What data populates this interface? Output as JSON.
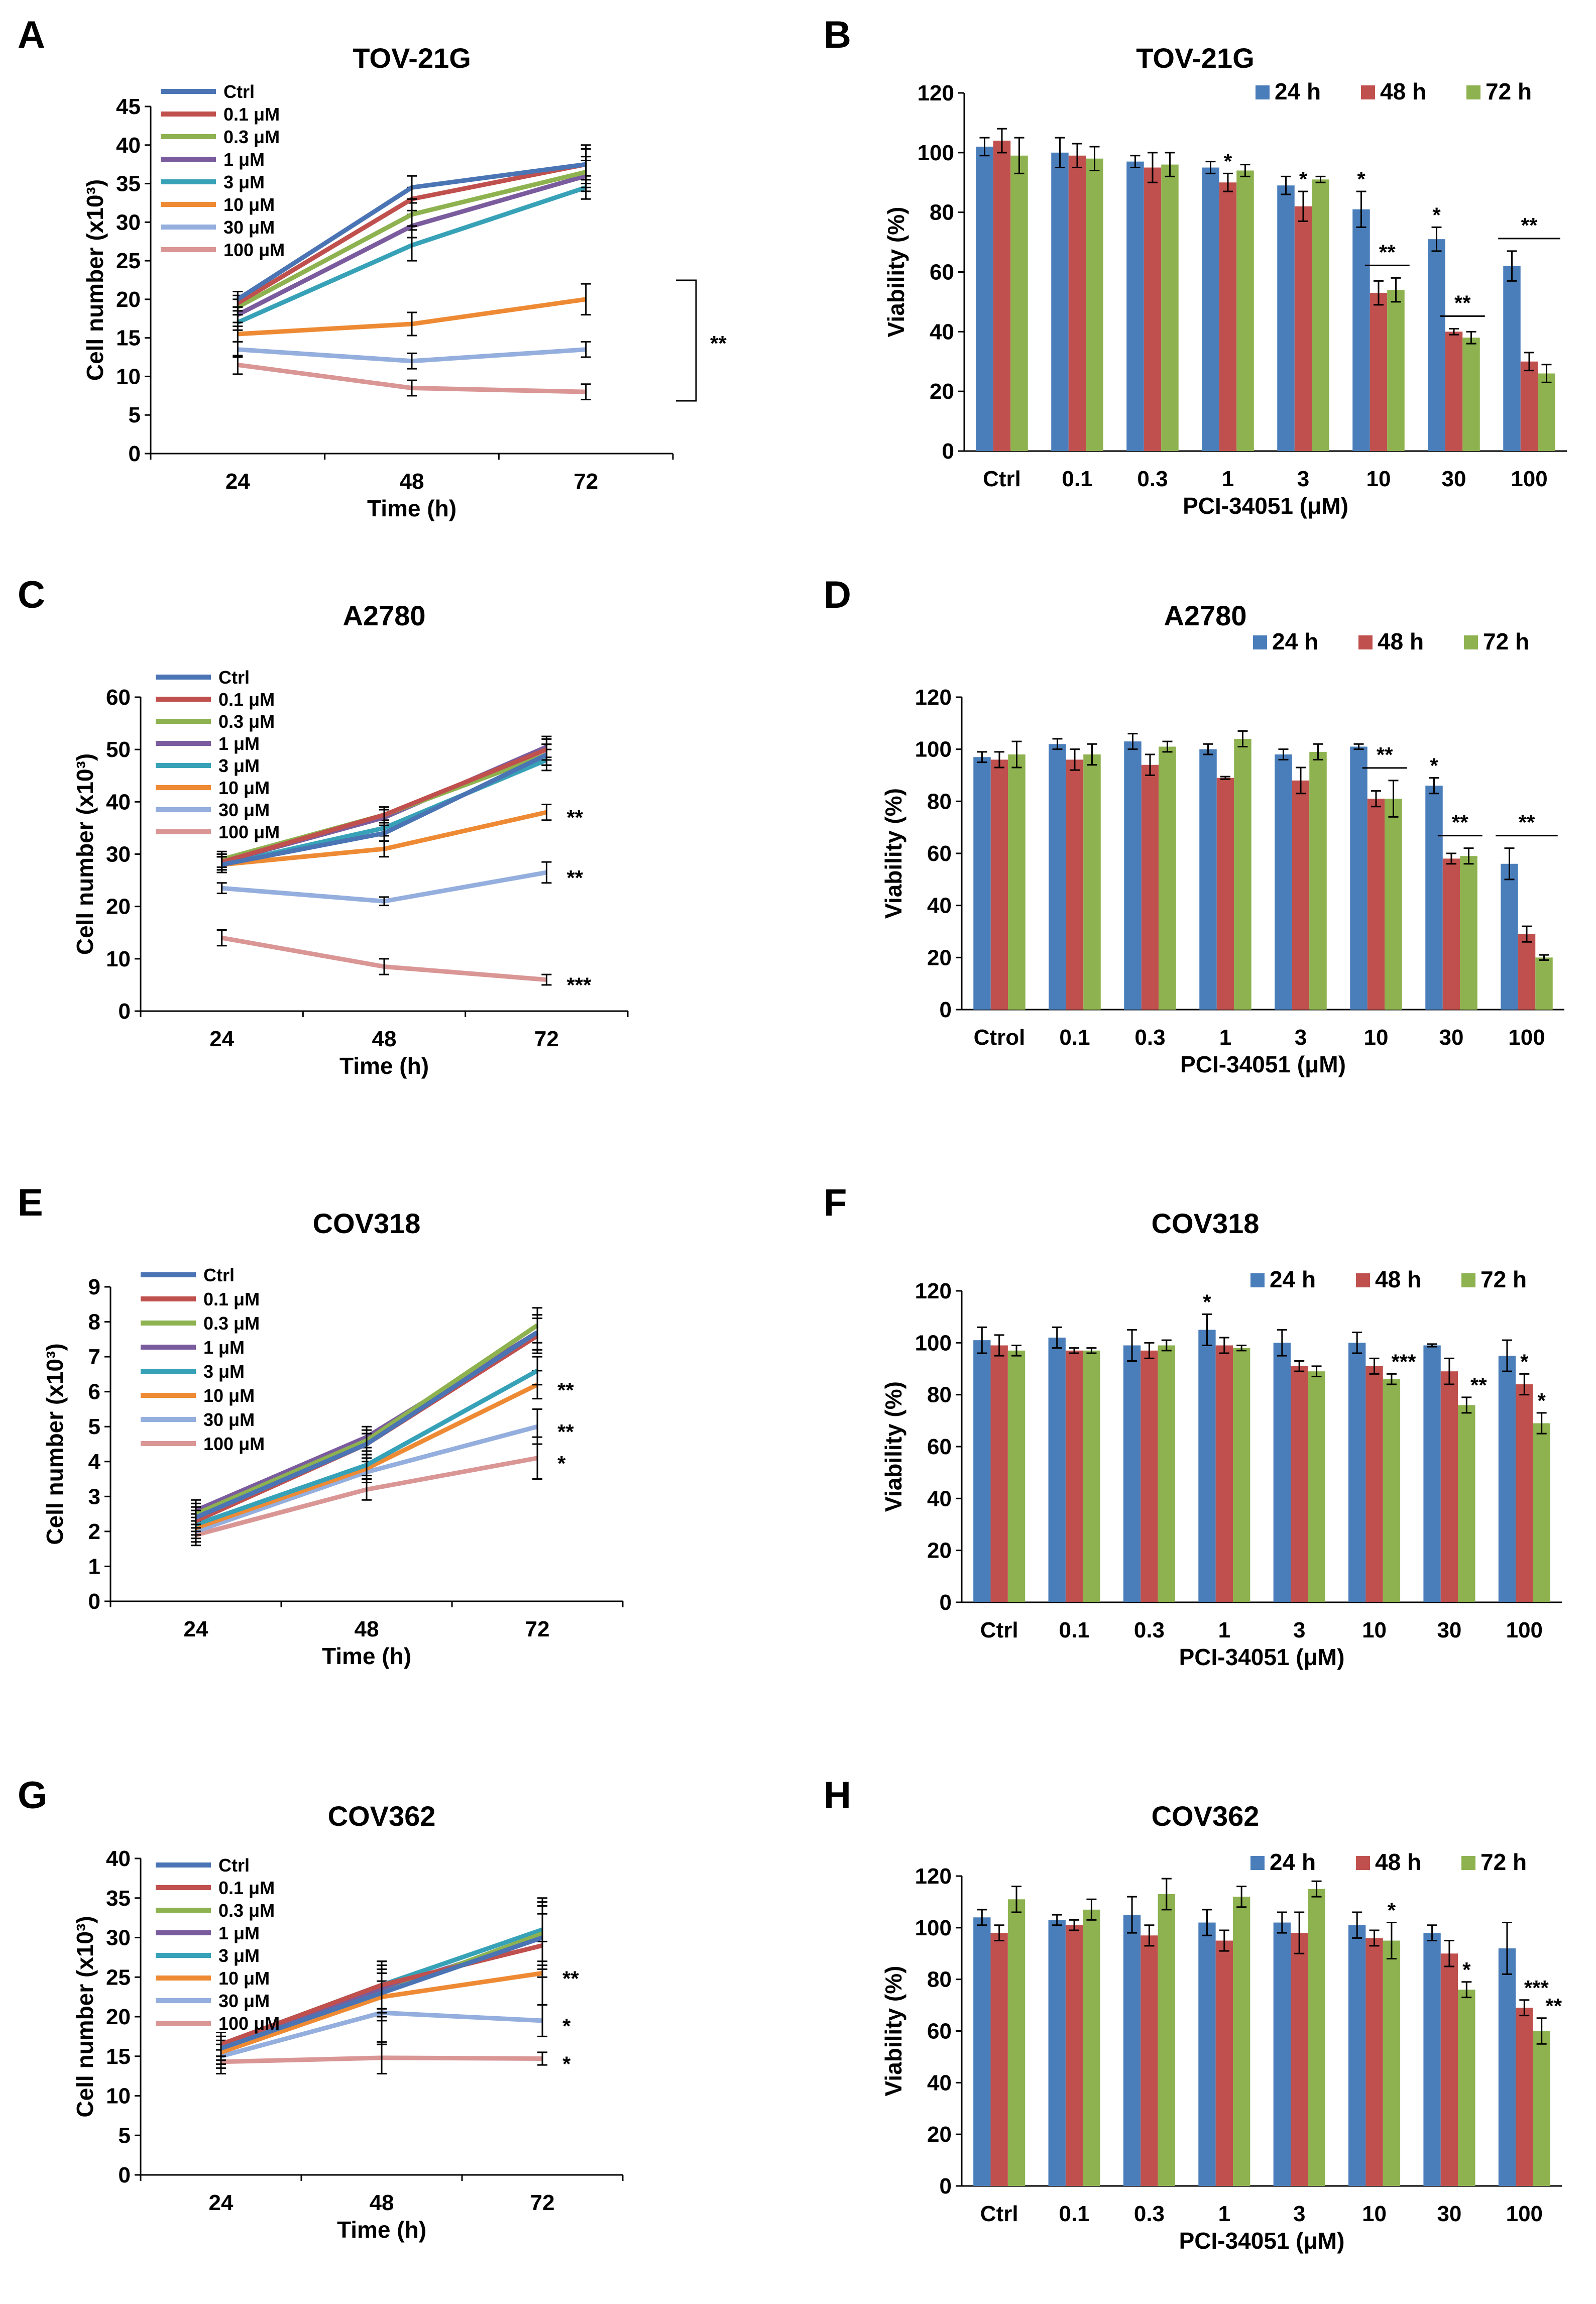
{
  "chart_data": [
    {
      "panel": "A",
      "type": "line",
      "title": "TOV-21G",
      "xlabel": "Time (h)",
      "ylabel": "Cell number (x10³)",
      "x": [
        24,
        48,
        72
      ],
      "ylim": [
        0,
        45
      ],
      "yticks": [
        0,
        5,
        10,
        15,
        20,
        25,
        30,
        35,
        40,
        45
      ],
      "series": [
        {
          "name": "Ctrl",
          "color": "#4a74b4",
          "values": [
            20,
            34.5,
            37.5
          ],
          "errors": [
            1,
            1.5,
            2.5
          ]
        },
        {
          "name": "0.1 μM",
          "color": "#c0504d",
          "values": [
            19.5,
            33,
            37.5
          ],
          "errors": [
            1,
            1.5,
            2
          ]
        },
        {
          "name": "0.3 μM",
          "color": "#8db24f",
          "values": [
            19,
            31,
            36.5
          ],
          "errors": [
            1,
            1.5,
            2
          ]
        },
        {
          "name": "1 μM",
          "color": "#7a5c9e",
          "values": [
            18,
            29.5,
            36
          ],
          "errors": [
            1,
            1.5,
            2
          ]
        },
        {
          "name": "3 μM",
          "color": "#37a2b7",
          "values": [
            17,
            27,
            34.5
          ],
          "errors": [
            1,
            2,
            1.5
          ]
        },
        {
          "name": "10 μM",
          "color": "#ee8a34",
          "values": [
            15.5,
            16.8,
            20
          ],
          "errors": [
            1,
            1.5,
            2
          ]
        },
        {
          "name": "30 μM",
          "color": "#94aede",
          "values": [
            13.5,
            12,
            13.5
          ],
          "errors": [
            1,
            1,
            1
          ]
        },
        {
          "name": "100 μM",
          "color": "#d99694",
          "values": [
            11.5,
            8.5,
            8
          ],
          "errors": [
            1.2,
            1,
            1
          ]
        }
      ],
      "annotations": [
        {
          "text": "**",
          "target": "10, 30, 100 μM at 72 h"
        }
      ]
    },
    {
      "panel": "B",
      "type": "bar",
      "title": "TOV-21G",
      "xlabel": "PCI-34051 (μM)",
      "ylabel": "Viability (%)",
      "categories": [
        "Ctrl",
        "0.1",
        "0.3",
        "1",
        "3",
        "10",
        "30",
        "100"
      ],
      "ylim": [
        0,
        120
      ],
      "yticks": [
        0,
        20,
        40,
        60,
        80,
        100,
        120
      ],
      "series": [
        {
          "name": "24 h",
          "color": "#4a7ebb",
          "values": [
            102,
            100,
            97,
            95,
            89,
            81,
            71,
            62
          ],
          "errors": [
            3,
            5,
            2,
            2,
            3,
            6,
            4,
            5
          ]
        },
        {
          "name": "48 h",
          "color": "#c0504d",
          "values": [
            104,
            99,
            95,
            90,
            82,
            53,
            40,
            30
          ],
          "errors": [
            4,
            4,
            5,
            3,
            5,
            4,
            1,
            3
          ]
        },
        {
          "name": "72 h",
          "color": "#8db24f",
          "values": [
            99,
            98,
            96,
            94,
            91,
            54,
            38,
            26
          ],
          "errors": [
            6,
            4,
            4,
            2,
            1,
            4,
            2,
            3
          ]
        }
      ],
      "annotations": [
        {
          "text": "*",
          "category": "1",
          "series": "48 h"
        },
        {
          "text": "*",
          "category": "3",
          "series": "48 h"
        },
        {
          "text": "*",
          "category": "10",
          "series": "24 h"
        },
        {
          "text": "**",
          "category": "10",
          "series": "48 h, 72 h"
        },
        {
          "text": "*",
          "category": "30",
          "series": "24 h"
        },
        {
          "text": "**",
          "category": "30",
          "series": "48 h, 72 h"
        },
        {
          "text": "**",
          "category": "100",
          "series": "all"
        }
      ]
    },
    {
      "panel": "C",
      "type": "line",
      "title": "A2780",
      "xlabel": "Time (h)",
      "ylabel": "Cell number (x10³)",
      "x": [
        24,
        48,
        72
      ],
      "ylim": [
        0,
        60
      ],
      "yticks": [
        0,
        10,
        20,
        30,
        40,
        50,
        60
      ],
      "series": [
        {
          "name": "Ctrl",
          "color": "#4a74b4",
          "values": [
            28,
            34,
            49
          ],
          "errors": [
            1.5,
            1.5,
            2
          ]
        },
        {
          "name": "0.1 μM",
          "color": "#c0504d",
          "values": [
            28.5,
            37.5,
            50
          ],
          "errors": [
            1.5,
            1.5,
            2
          ]
        },
        {
          "name": "0.3 μM",
          "color": "#8db24f",
          "values": [
            29,
            37.5,
            49
          ],
          "errors": [
            1.5,
            1.5,
            2
          ]
        },
        {
          "name": "1 μM",
          "color": "#7a5c9e",
          "values": [
            28.5,
            37,
            50.5
          ],
          "errors": [
            1.5,
            1.5,
            2
          ]
        },
        {
          "name": "3 μM",
          "color": "#37a2b7",
          "values": [
            28,
            35,
            48
          ],
          "errors": [
            1.5,
            1.5,
            2
          ]
        },
        {
          "name": "10 μM",
          "color": "#ee8a34",
          "values": [
            28,
            31,
            38
          ],
          "errors": [
            1.5,
            1.5,
            1.5
          ]
        },
        {
          "name": "30 μM",
          "color": "#94aede",
          "values": [
            23.5,
            21,
            26.5
          ],
          "errors": [
            1,
            0.8,
            2
          ]
        },
        {
          "name": "100 μM",
          "color": "#d99694",
          "values": [
            14,
            8.5,
            6
          ],
          "errors": [
            1.5,
            1.5,
            1
          ]
        }
      ],
      "annotations": [
        {
          "text": "**",
          "series": "10 μM"
        },
        {
          "text": "**",
          "series": "30 μM"
        },
        {
          "text": "***",
          "series": "100 μM"
        }
      ]
    },
    {
      "panel": "D",
      "type": "bar",
      "title": "A2780",
      "xlabel": "PCI-34051 (μM)",
      "ylabel": "Viability (%)",
      "categories": [
        "Ctrol",
        "0.1",
        "0.3",
        "1",
        "3",
        "10",
        "30",
        "100"
      ],
      "ylim": [
        0,
        120
      ],
      "yticks": [
        0,
        20,
        40,
        60,
        80,
        100,
        120
      ],
      "series": [
        {
          "name": "24 h",
          "color": "#4a7ebb",
          "values": [
            97,
            102,
            103,
            100,
            98,
            101,
            86,
            56
          ],
          "errors": [
            2,
            2,
            3,
            2,
            2,
            1,
            3,
            6
          ]
        },
        {
          "name": "48 h",
          "color": "#c0504d",
          "values": [
            96,
            96,
            94,
            89,
            88,
            81,
            58,
            29
          ],
          "errors": [
            3,
            4,
            4,
            0.5,
            5,
            3,
            2,
            3
          ]
        },
        {
          "name": "72 h",
          "color": "#8db24f",
          "values": [
            98,
            98,
            101,
            104,
            99,
            81,
            59,
            20
          ],
          "errors": [
            5,
            4,
            2,
            3,
            3,
            7,
            3,
            1
          ]
        }
      ],
      "annotations": [
        {
          "text": "**",
          "category": "10",
          "series": "48 h, 72 h"
        },
        {
          "text": "*",
          "category": "30",
          "series": "24 h"
        },
        {
          "text": "**",
          "category": "30",
          "series": "48 h, 72 h"
        },
        {
          "text": "**",
          "category": "100",
          "series": "all"
        }
      ]
    },
    {
      "panel": "E",
      "type": "line",
      "title": "COV318",
      "xlabel": "Time (h)",
      "ylabel": "Cell number (x10³)",
      "x": [
        24,
        48,
        72
      ],
      "ylim": [
        0,
        9
      ],
      "yticks": [
        0,
        1,
        2,
        3,
        4,
        5,
        6,
        7,
        8,
        9
      ],
      "series": [
        {
          "name": "Ctrl",
          "color": "#4a74b4",
          "values": [
            2.4,
            4.5,
            7.7
          ],
          "errors": [
            0.3,
            0.3,
            0.5
          ]
        },
        {
          "name": "0.1 μM",
          "color": "#c0504d",
          "values": [
            2.3,
            4.5,
            7.6
          ],
          "errors": [
            0.3,
            0.3,
            0.5
          ]
        },
        {
          "name": "0.3 μM",
          "color": "#8db24f",
          "values": [
            2.5,
            4.6,
            7.9
          ],
          "errors": [
            0.3,
            0.3,
            0.5
          ]
        },
        {
          "name": "1 μM",
          "color": "#7a5c9e",
          "values": [
            2.6,
            4.7,
            7.7
          ],
          "errors": [
            0.3,
            0.3,
            0.5
          ]
        },
        {
          "name": "3 μM",
          "color": "#37a2b7",
          "values": [
            2.2,
            3.9,
            6.6
          ],
          "errors": [
            0.3,
            0.3,
            0.4
          ]
        },
        {
          "name": "10 μM",
          "color": "#ee8a34",
          "values": [
            2.1,
            3.8,
            6.2
          ],
          "errors": [
            0.3,
            0.3,
            0.4
          ]
        },
        {
          "name": "30 μM",
          "color": "#94aede",
          "values": [
            2.0,
            3.7,
            5.0
          ],
          "errors": [
            0.3,
            0.3,
            0.5
          ]
        },
        {
          "name": "100 μM",
          "color": "#d99694",
          "values": [
            1.9,
            3.2,
            4.1
          ],
          "errors": [
            0.3,
            0.3,
            0.6
          ]
        }
      ],
      "annotations": [
        {
          "text": "**",
          "series": "10 μM"
        },
        {
          "text": "**",
          "series": "30 μM"
        },
        {
          "text": "*",
          "series": "100 μM"
        }
      ]
    },
    {
      "panel": "F",
      "type": "bar",
      "title": "COV318",
      "xlabel": "PCI-34051 (μM)",
      "ylabel": "Viability (%)",
      "categories": [
        "Ctrl",
        "0.1",
        "0.3",
        "1",
        "3",
        "10",
        "30",
        "100"
      ],
      "ylim": [
        0,
        120
      ],
      "yticks": [
        0,
        20,
        40,
        60,
        80,
        100,
        120
      ],
      "series": [
        {
          "name": "24 h",
          "color": "#4a7ebb",
          "values": [
            101,
            102,
            99,
            105,
            100,
            100,
            99,
            95
          ],
          "errors": [
            5,
            4,
            6,
            6,
            5,
            4,
            0.5,
            6
          ]
        },
        {
          "name": "48 h",
          "color": "#c0504d",
          "values": [
            99,
            97,
            97,
            99,
            91,
            91,
            89,
            84
          ],
          "errors": [
            4,
            1,
            3,
            3,
            2,
            3,
            5,
            4
          ]
        },
        {
          "name": "72 h",
          "color": "#8db24f",
          "values": [
            97,
            97,
            99,
            98,
            89,
            86,
            76,
            69
          ],
          "errors": [
            2,
            1,
            2,
            1,
            2,
            2,
            3,
            4
          ]
        }
      ],
      "annotations": [
        {
          "text": "*",
          "category": "1",
          "series": "24 h"
        },
        {
          "text": "***",
          "category": "10",
          "series": "72 h"
        },
        {
          "text": "**",
          "category": "30",
          "series": "72 h"
        },
        {
          "text": "*",
          "category": "100",
          "series": "48 h"
        },
        {
          "text": "*",
          "category": "100",
          "series": "72 h"
        }
      ]
    },
    {
      "panel": "G",
      "type": "line",
      "title": "COV362",
      "xlabel": "Time (h)",
      "ylabel": "Cell number (x10³)",
      "x": [
        24,
        48,
        72
      ],
      "ylim": [
        0,
        40
      ],
      "yticks": [
        0,
        5,
        10,
        15,
        20,
        25,
        30,
        35,
        40
      ],
      "series": [
        {
          "name": "Ctrl",
          "color": "#4a74b4",
          "values": [
            16,
            23,
            30
          ],
          "errors": [
            1.5,
            3,
            4
          ]
        },
        {
          "name": "0.1 μM",
          "color": "#c0504d",
          "values": [
            16.5,
            24,
            29
          ],
          "errors": [
            1.5,
            3,
            4
          ]
        },
        {
          "name": "0.3 μM",
          "color": "#8db24f",
          "values": [
            16,
            23,
            30.5
          ],
          "errors": [
            1.5,
            3,
            4
          ]
        },
        {
          "name": "1 μM",
          "color": "#7a5c9e",
          "values": [
            16,
            23.5,
            30
          ],
          "errors": [
            1.5,
            3,
            4
          ]
        },
        {
          "name": "3 μM",
          "color": "#37a2b7",
          "values": [
            16.5,
            24,
            31
          ],
          "errors": [
            1.5,
            3,
            4
          ]
        },
        {
          "name": "10 μM",
          "color": "#ee8a34",
          "values": [
            15.5,
            22.5,
            25.5
          ],
          "errors": [
            1.5,
            3,
            4
          ]
        },
        {
          "name": "30 μM",
          "color": "#94aede",
          "values": [
            15,
            20.5,
            19.5
          ],
          "errors": [
            1.5,
            4,
            2
          ]
        },
        {
          "name": "100 μM",
          "color": "#d99694",
          "values": [
            14.3,
            14.8,
            14.7
          ],
          "errors": [
            1.5,
            2,
            0.8
          ]
        }
      ],
      "annotations": [
        {
          "text": "**",
          "series": "10 μM"
        },
        {
          "text": "*",
          "series": "30 μM"
        },
        {
          "text": "*",
          "series": "100 μM"
        }
      ]
    },
    {
      "panel": "H",
      "type": "bar",
      "title": "COV362",
      "xlabel": "PCI-34051 (μM)",
      "ylabel": "Viability (%)",
      "categories": [
        "Ctrl",
        "0.1",
        "0.3",
        "1",
        "3",
        "10",
        "30",
        "100"
      ],
      "ylim": [
        0,
        120
      ],
      "yticks": [
        0,
        20,
        40,
        60,
        80,
        100,
        120
      ],
      "series": [
        {
          "name": "24 h",
          "color": "#4a7ebb",
          "values": [
            104,
            103,
            105,
            102,
            102,
            101,
            98,
            92
          ],
          "errors": [
            3,
            2,
            7,
            5,
            4,
            5,
            3,
            10
          ]
        },
        {
          "name": "48 h",
          "color": "#c0504d",
          "values": [
            98,
            101,
            97,
            95,
            98,
            96,
            90,
            69
          ],
          "errors": [
            3,
            2,
            4,
            4,
            8,
            3,
            5,
            3
          ]
        },
        {
          "name": "72 h",
          "color": "#8db24f",
          "values": [
            111,
            107,
            113,
            112,
            115,
            95,
            76,
            60
          ],
          "errors": [
            5,
            4,
            6,
            4,
            3,
            7,
            3,
            5
          ]
        }
      ],
      "annotations": [
        {
          "text": "*",
          "category": "10",
          "series": "72 h"
        },
        {
          "text": "*",
          "category": "30",
          "series": "72 h"
        },
        {
          "text": "***",
          "category": "100",
          "series": "48 h"
        },
        {
          "text": "**",
          "category": "100",
          "series": "72 h"
        }
      ]
    }
  ]
}
